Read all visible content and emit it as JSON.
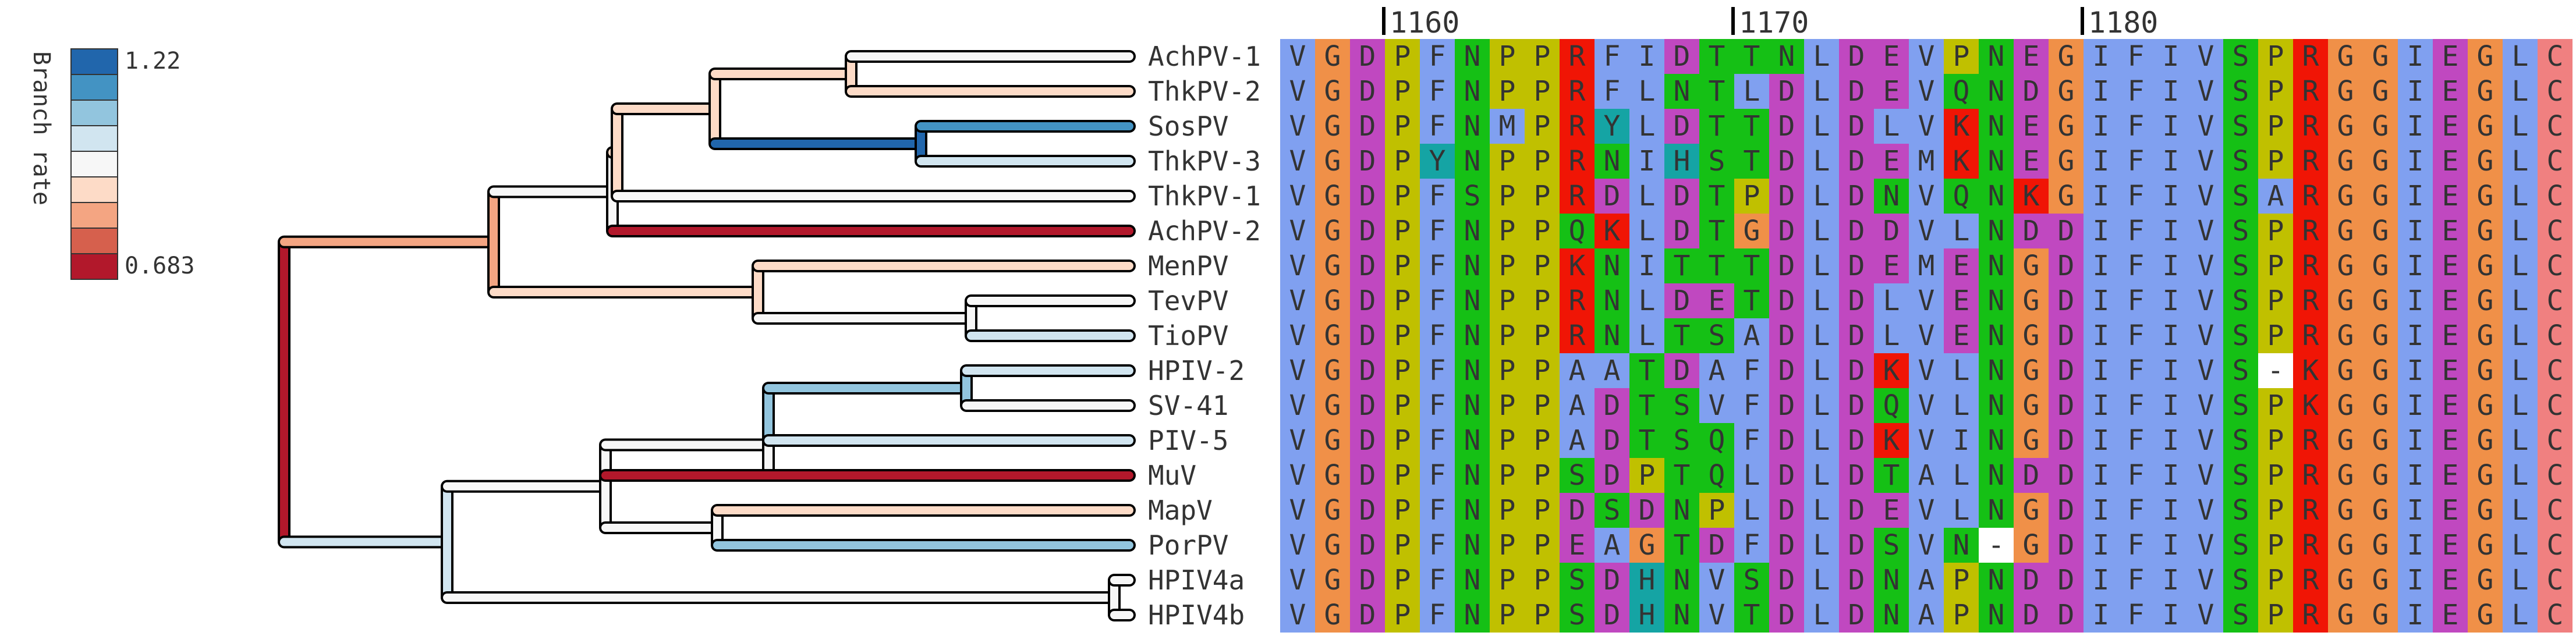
{
  "legend": {
    "title": "Branch rate",
    "max_label": "1.22",
    "min_label": "0.683",
    "scale_colors": [
      "#2166ac",
      "#4393c3",
      "#92c5de",
      "#d1e5f0",
      "#f7f7f7",
      "#fddbc7",
      "#f4a582",
      "#d6604d",
      "#b2182b"
    ]
  },
  "position_labels": [
    "1160",
    "1170",
    "1180"
  ],
  "residue_colors": {
    "V": "#80a0f0",
    "I": "#80a0f0",
    "L": "#80a0f0",
    "F": "#80a0f0",
    "A": "#80a0f0",
    "M": "#80a0f0",
    "G": "#f09048",
    "P": "#c0c000",
    "D": "#c048c0",
    "E": "#c048c0",
    "N": "#15c015",
    "Q": "#15c015",
    "S": "#15c015",
    "T": "#15c015",
    "R": "#f01505",
    "K": "#f01505",
    "Y": "#15a4a4",
    "H": "#15a4a4",
    "C": "#f08080",
    "-": "#ffffff"
  },
  "taxa": [
    {
      "name": "AchPV-1",
      "seq": "VGDPFNPPRFIDTTNLDEVPNEGIFIVSPRGGIEGLC",
      "branch_color": "#f7f7f7"
    },
    {
      "name": "ThkPV-2",
      "seq": "VGDPFNPPRFLNTLDLDEVQNDGIFIVSPRGGIEGLC",
      "branch_color": "#fddbc7"
    },
    {
      "name": "SosPV",
      "seq": "VGDPFNMPRYLDTTDLDLVKNEGIFIVSPRGGIEGLC",
      "branch_color": "#4393c3"
    },
    {
      "name": "ThkPV-3",
      "seq": "VGDPYNPPRNIHSTDLDEMKNEGIFIVSPRGGIEGLC",
      "branch_color": "#d1e5f0"
    },
    {
      "name": "ThkPV-1",
      "seq": "VGDPFSPPRDLDTPDLDNVQNKGIFIVSARGGIEGLC",
      "branch_color": "#f7f7f7"
    },
    {
      "name": "AchPV-2",
      "seq": "VGDPFNPPQKLDTGDLDDVLNDDIFIVSPRGGIEGLC",
      "branch_color": "#b2182b"
    },
    {
      "name": "MenPV",
      "seq": "VGDPFNPPKNITTTDLDEMENGDIFIVSPRGGIEGLC",
      "branch_color": "#fddbc7"
    },
    {
      "name": "TevPV",
      "seq": "VGDPFNPPRNLDETDLDLVENGDIFIVSPRGGIEGLC",
      "branch_color": "#f7f7f7"
    },
    {
      "name": "TioPV",
      "seq": "VGDPFNPPRNLTSADLDLVENGDIFIVSPRGGIEGLC",
      "branch_color": "#d1e5f0"
    },
    {
      "name": "HPIV-2",
      "seq": "VGDPFNPPAATDAFDLDKVLNGDIFIVS-KGGIEGLC",
      "branch_color": "#d1e5f0"
    },
    {
      "name": "SV-41",
      "seq": "VGDPFNPPADTSVFDLDQVLNGDIFIVSPKGGIEGLC",
      "branch_color": "#f7f7f7"
    },
    {
      "name": "PIV-5",
      "seq": "VGDPFNPPADTSQFDLDKVINGDIFIVSPRGGIEGLC",
      "branch_color": "#d1e5f0"
    },
    {
      "name": "MuV",
      "seq": "VGDPFNPPSDPTQLDLDTALNDDIFIVSPRGGIEGLC",
      "branch_color": "#b2182b"
    },
    {
      "name": "MapV",
      "seq": "VGDPFNPPDSDNPLDLDEVLNGDIFIVSPRGGIEGLC",
      "branch_color": "#fddbc7"
    },
    {
      "name": "PorPV",
      "seq": "VGDPFNPPEAGTDFDLDSVN-GDIFIVSPRGGIEGLC",
      "branch_color": "#92c5de"
    },
    {
      "name": "HPIV4a",
      "seq": "VGDPFNPPSDHNVSDLDNAPNDDIFIVSPRGGIEGLC",
      "branch_color": "#f7f7f7"
    },
    {
      "name": "HPIV4b",
      "seq": "VGDPFNPPSDHNVTDLDNAPNDDIFIVSPRGGIEGLC",
      "branch_color": "#f7f7f7"
    }
  ],
  "internal_branch_colors": {
    "root_upper": "#b2182b",
    "root_lower": "#d1e5f0",
    "upper_clade": "#f4a582",
    "ach_clade": "#f7f7f7",
    "ach_sub": "#fddbc7",
    "ach_pair": "#fddbc7",
    "sos_pair": "#2166ac",
    "men_clade": "#fddbc7",
    "tev_pair": "#f7f7f7",
    "lower_a": "#d1e5f0",
    "lower_b": "#f7f7f7",
    "rubula": "#92c5de",
    "hpiv2_pair": "#92c5de",
    "map_por": "#f7f7f7",
    "hpiv4": "#f7f7f7"
  }
}
